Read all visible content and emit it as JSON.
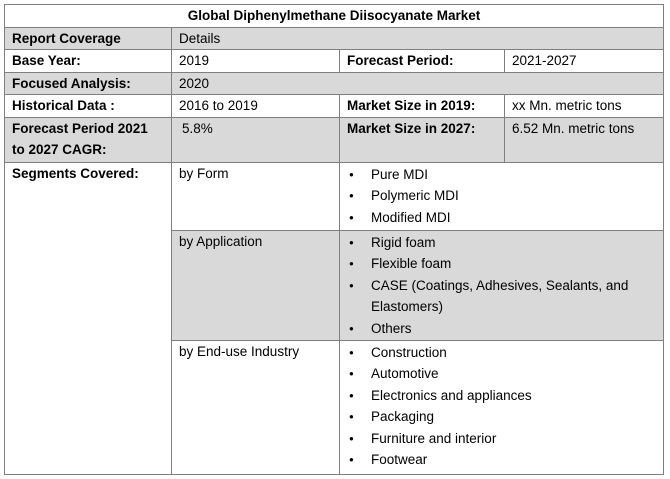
{
  "title": "Global Diphenylmethane Diisocyanate Market",
  "rows": {
    "report_coverage": {
      "label": "Report Coverage",
      "value": "Details"
    },
    "base_year": {
      "label": "Base Year:",
      "value": "2019",
      "label2": "Forecast Period:",
      "value2": "2021-2027"
    },
    "focused_analysis": {
      "label": "Focused Analysis:",
      "value": "2020"
    },
    "historical_data": {
      "label": "Historical Data :",
      "value": "2016 to 2019",
      "label2": "Market Size in 2019:",
      "value2": "xx Mn. metric tons"
    },
    "forecast_cagr": {
      "label": "Forecast Period 2021 to 2027 CAGR:",
      "value": "5.8%",
      "label2": "Market Size in 2027:",
      "value2": "6.52 Mn. metric tons"
    }
  },
  "segments": {
    "label": "Segments Covered:",
    "groups": [
      {
        "name": "by Form",
        "items": [
          "Pure MDI",
          "Polymeric MDI",
          "Modified MDI"
        ]
      },
      {
        "name": "by Application",
        "items": [
          "Rigid foam",
          "Flexible foam",
          "CASE (Coatings, Adhesives, Sealants, and Elastomers)",
          "Others"
        ]
      },
      {
        "name": "by End-use Industry",
        "items": [
          "Construction",
          "Automotive",
          "Electronics and appliances",
          "Packaging",
          "Furniture and interior",
          "Footwear"
        ]
      }
    ]
  }
}
